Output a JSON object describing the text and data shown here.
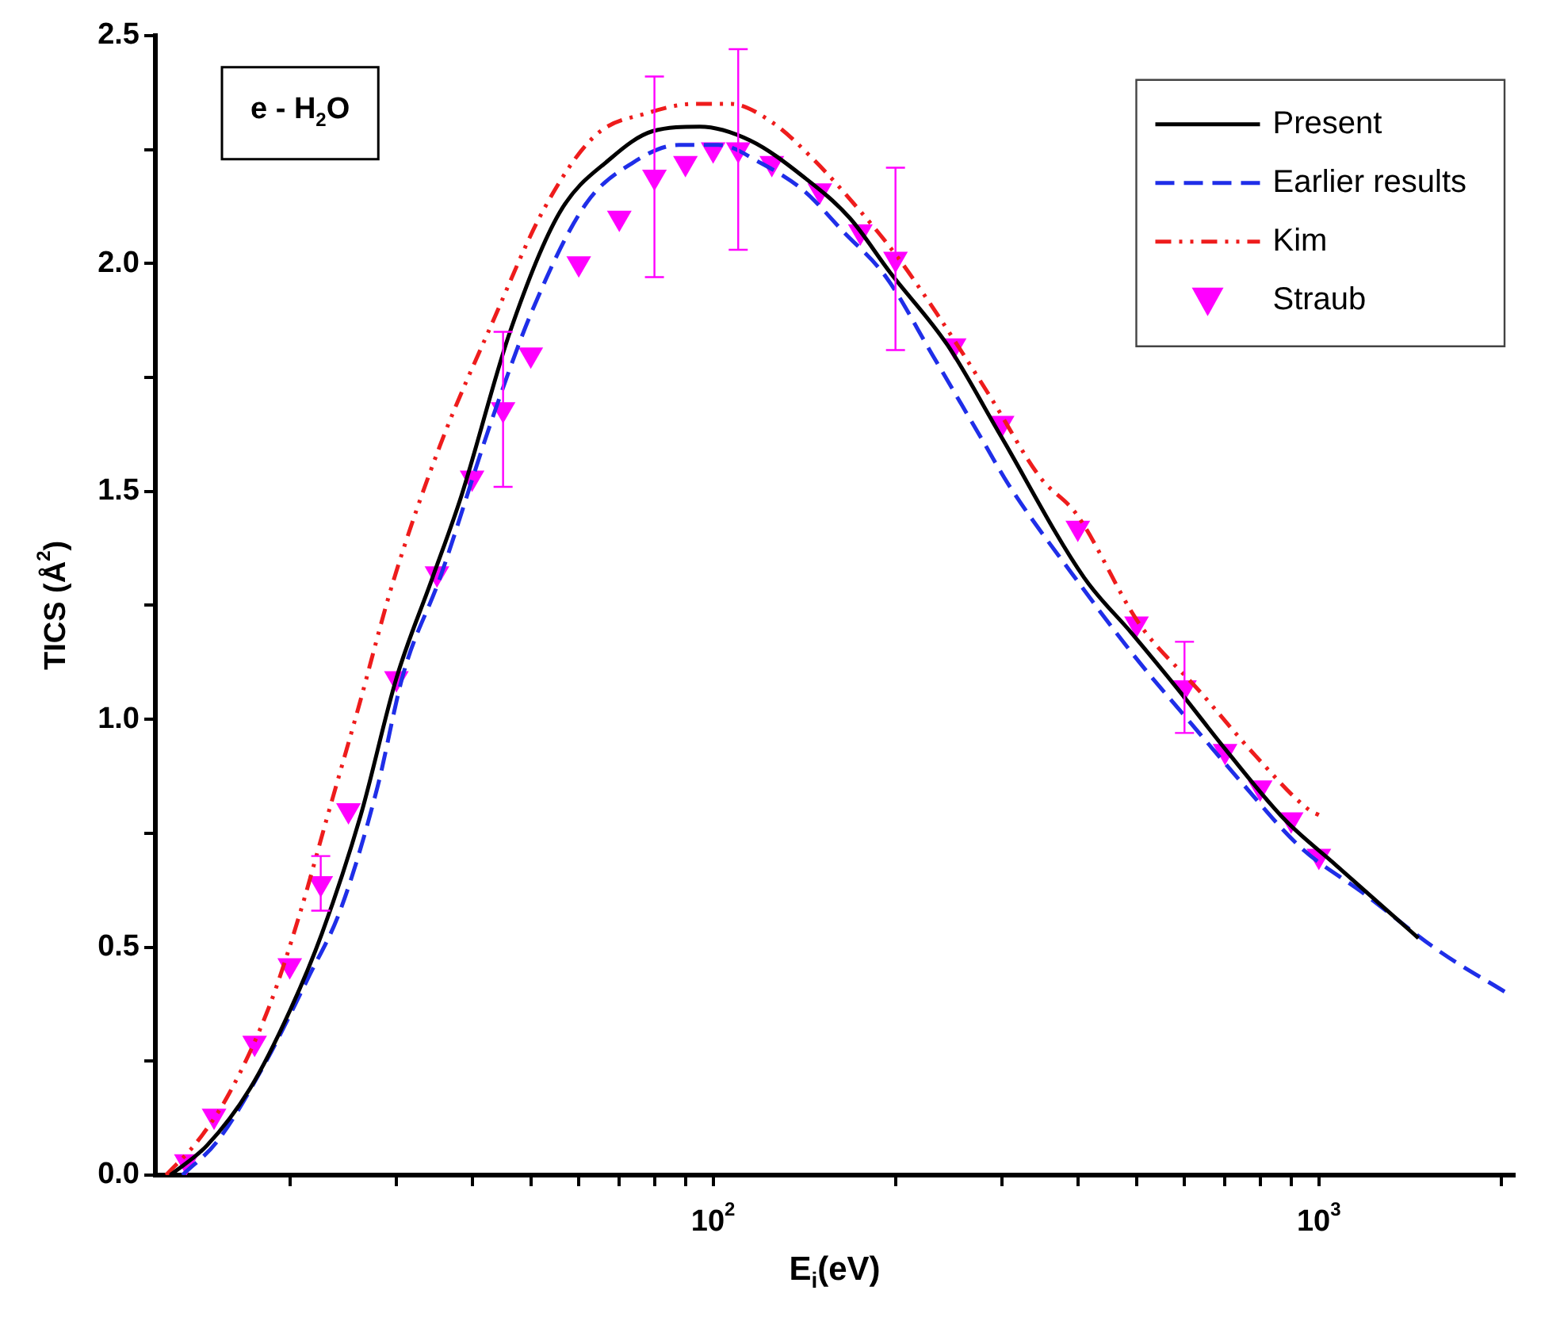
{
  "chart_data": {
    "type": "line",
    "xlabel": "E$_{i}$(eV)",
    "ylabel": "TICS (Å$^{2}$)",
    "annotations": [
      "e - H$_{2}$O"
    ],
    "log": "x",
    "grid": false,
    "legend": "top right",
    "xlim": [
      12,
      2100
    ],
    "ylim": [
      0,
      2.5
    ],
    "xticks": [
      {
        "value": 20,
        "label": null
      },
      {
        "value": 30,
        "label": null
      },
      {
        "value": 40,
        "label": null
      },
      {
        "value": 50,
        "label": null
      },
      {
        "value": 60,
        "label": null
      },
      {
        "value": 70,
        "label": null
      },
      {
        "value": 80,
        "label": null
      },
      {
        "value": 90,
        "label": null
      },
      {
        "value": 100,
        "label": "10$^{2}$"
      },
      {
        "value": 200,
        "label": null
      },
      {
        "value": 300,
        "label": null
      },
      {
        "value": 400,
        "label": null
      },
      {
        "value": 500,
        "label": null
      },
      {
        "value": 600,
        "label": null
      },
      {
        "value": 700,
        "label": null
      },
      {
        "value": 800,
        "label": null
      },
      {
        "value": 900,
        "label": null
      },
      {
        "value": 1000,
        "label": "10$^{3}$"
      },
      {
        "value": 2000,
        "label": null
      }
    ],
    "yticks": [
      {
        "value": 0,
        "label": "0.0"
      },
      {
        "value": 0.25,
        "label": null
      },
      {
        "value": 0.5,
        "label": "0.5"
      },
      {
        "value": 0.75,
        "label": null
      },
      {
        "value": 1,
        "label": "1.0"
      },
      {
        "value": 1.25,
        "label": null
      },
      {
        "value": 1.5,
        "label": "1.5"
      },
      {
        "value": 1.75,
        "label": null
      },
      {
        "value": 2,
        "label": "2.0"
      },
      {
        "value": 2.25,
        "label": null
      },
      {
        "value": 2.5,
        "label": "2.5"
      }
    ],
    "series": [
      {
        "name": "Present",
        "color": "#000000",
        "line_style": "solid",
        "marker": "none",
        "x": [
          12.7,
          14.6,
          17.2,
          20,
          22.6,
          26.2,
          30,
          34.4,
          38.4,
          46.2,
          55.7,
          67.7,
          79.4,
          95,
          115,
          141,
          168,
          196,
          244,
          296,
          410,
          490,
          590,
          705,
          878,
          1067,
          1460
        ],
        "values": [
          0,
          0.065,
          0.19,
          0.36,
          0.53,
          0.79,
          1.09,
          1.31,
          1.49,
          1.85,
          2.11,
          2.23,
          2.29,
          2.3,
          2.27,
          2.19,
          2.1,
          1.98,
          1.82,
          1.63,
          1.31,
          1.19,
          1.06,
          0.93,
          0.78,
          0.68,
          0.52
        ]
      },
      {
        "name": "Earlier results",
        "color": "#1f2ee8",
        "line_style": "dashed",
        "marker": "none",
        "x": [
          13.3,
          15.2,
          18.2,
          21.4,
          24.3,
          27.9,
          30.8,
          35.4,
          43.2,
          50.4,
          61.6,
          73.5,
          87.8,
          102,
          120,
          141,
          164,
          193,
          230,
          279,
          309,
          391,
          495,
          616,
          747,
          931,
          1180,
          1585,
          2040
        ],
        "values": [
          0,
          0.075,
          0.245,
          0.43,
          0.585,
          0.85,
          1.1,
          1.31,
          1.66,
          1.9,
          2.13,
          2.22,
          2.26,
          2.26,
          2.22,
          2.16,
          2.07,
          1.97,
          1.8,
          1.61,
          1.51,
          1.32,
          1.14,
          0.99,
          0.86,
          0.72,
          0.62,
          0.49,
          0.4
        ]
      },
      {
        "name": "Kim",
        "color": "#ee1c1c",
        "line_style": "dotted",
        "marker": "none",
        "x": [
          12.5,
          14.1,
          15.9,
          18.5,
          20.8,
          23,
          25.9,
          29.6,
          35.4,
          43.2,
          52.6,
          63.8,
          78,
          93,
          107,
          125,
          146,
          171,
          200,
          234,
          286,
          347,
          398,
          505,
          637,
          786,
          966,
          1000
        ],
        "values": [
          0,
          0.075,
          0.18,
          0.37,
          0.575,
          0.78,
          1.02,
          1.3,
          1.6,
          1.87,
          2.12,
          2.28,
          2.33,
          2.35,
          2.35,
          2.31,
          2.23,
          2.13,
          2.02,
          1.89,
          1.71,
          1.53,
          1.45,
          1.21,
          1.06,
          0.92,
          0.8,
          0.79
        ]
      },
      {
        "name": "Straub",
        "type": "scatter",
        "color": "#ff00ff",
        "marker": "triangle",
        "x": [
          13.5,
          15,
          17.5,
          20,
          22.5,
          25,
          30,
          35,
          40,
          45,
          50,
          60,
          70,
          80,
          90,
          100,
          110,
          125,
          150,
          175,
          200,
          250,
          300,
          400,
          500,
          600,
          700,
          800,
          900,
          1000
        ],
        "values": [
          0.03,
          0.13,
          0.29,
          0.46,
          0.64,
          0.8,
          1.09,
          1.32,
          1.53,
          1.68,
          1.8,
          2.0,
          2.1,
          2.19,
          2.22,
          2.25,
          2.25,
          2.22,
          2.16,
          2.07,
          2.01,
          1.82,
          1.65,
          1.42,
          1.21,
          1.07,
          0.93,
          0.85,
          0.78,
          0.7
        ],
        "errors": [
          null,
          null,
          null,
          null,
          0.06,
          null,
          null,
          null,
          null,
          0.17,
          null,
          null,
          null,
          0.22,
          null,
          null,
          0.22,
          null,
          null,
          null,
          0.2,
          null,
          null,
          null,
          null,
          0.1,
          null,
          null,
          null,
          null
        ]
      }
    ]
  }
}
